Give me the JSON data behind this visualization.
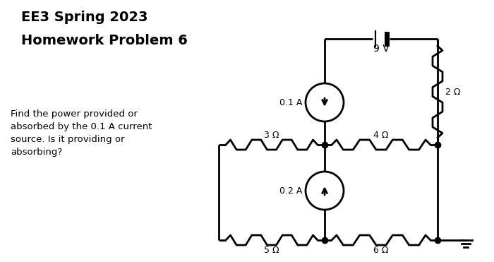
{
  "title_line1": "EE3 Spring 2023",
  "title_line2": "Homework Problem 6",
  "problem_text": "Find the power provided or\nabsorbed by the 0.1 A current\nsource. Is it providing or\nabsorbing?",
  "bg_color": "#ffffff",
  "line_color": "#000000",
  "font_color": "#000000",
  "R3_label": "3 Ω",
  "R4_label": "4 Ω",
  "R5_label": "5 Ω",
  "R6_label": "6 Ω",
  "R2_label": "2 Ω",
  "V_label": "9 V",
  "I1_label": "0.1 A",
  "I2_label": "0.2 A",
  "figsize": [
    7.0,
    3.71
  ],
  "dpi": 100,
  "xlim": [
    0,
    700
  ],
  "ylim": [
    0,
    371
  ]
}
